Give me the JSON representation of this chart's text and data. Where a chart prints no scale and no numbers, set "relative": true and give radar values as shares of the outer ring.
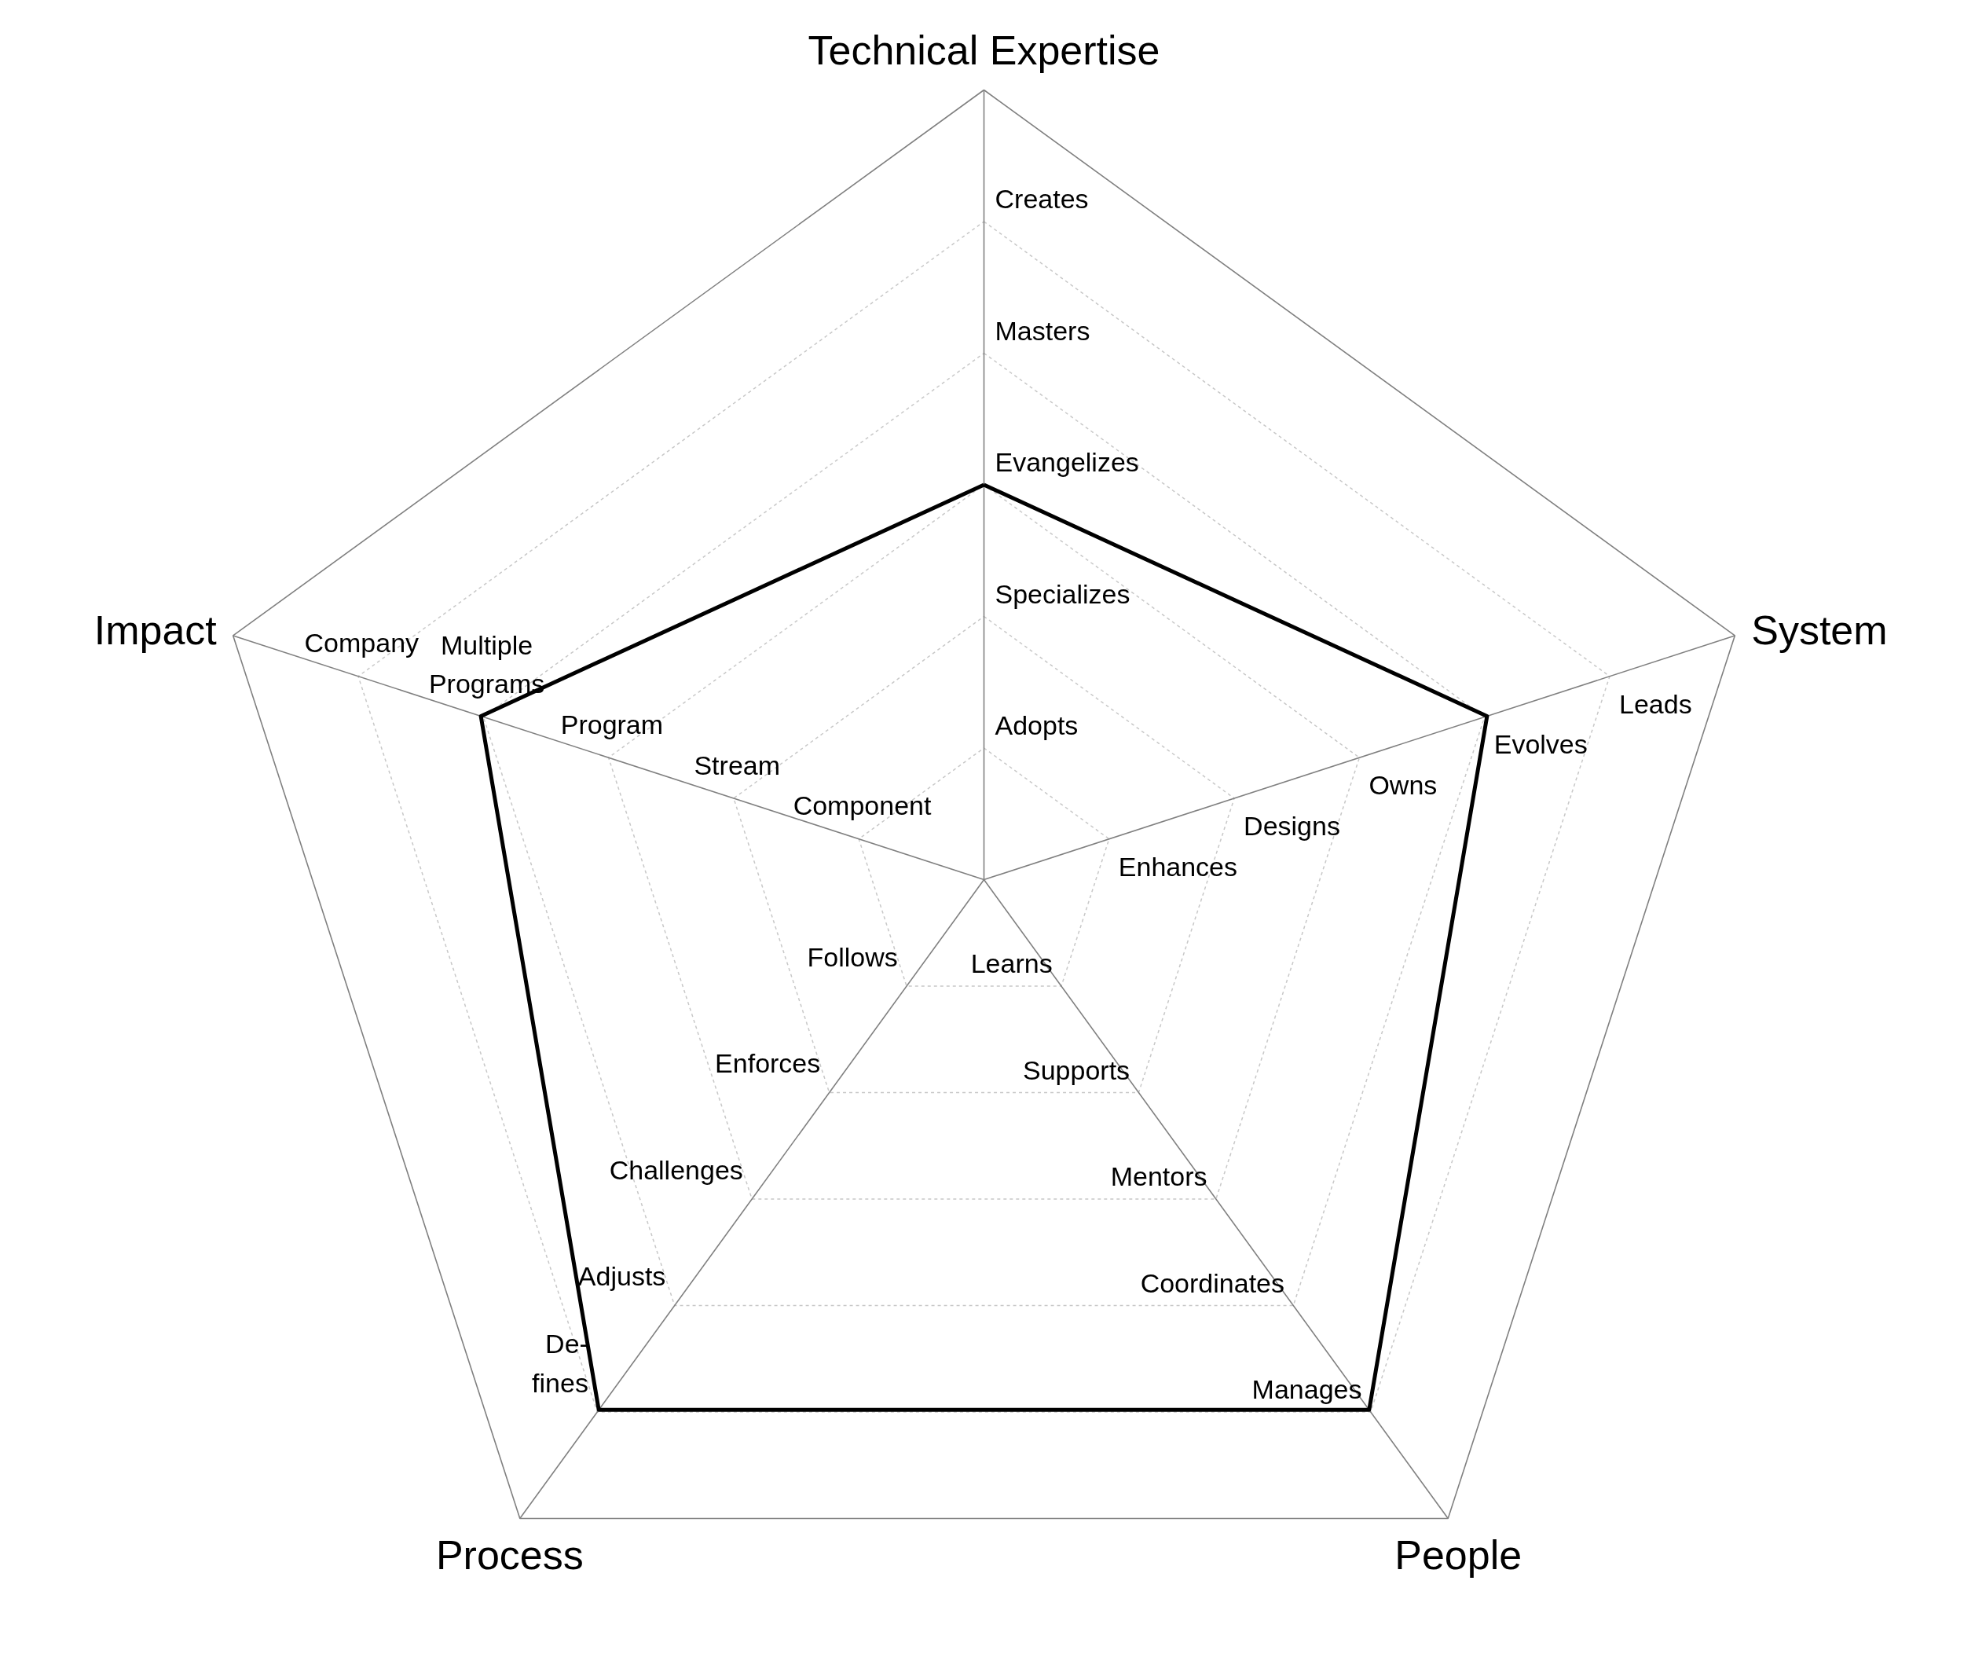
{
  "chart_data": {
    "type": "radar",
    "relative": true,
    "categories": [
      "Technical Expertise",
      "System",
      "People",
      "Process",
      "Impact"
    ],
    "series": [
      {
        "color": "#000000",
        "values": [
          0.5,
          0.67,
          0.83,
          0.83,
          0.67
        ]
      }
    ],
    "grid": true,
    "line_style": "solid",
    "annotations": [
      {
        "text": "Adopts",
        "x": "Technical Expertise"
      },
      {
        "text": "Specializes",
        "x": "Technical Expertise"
      },
      {
        "text": "Evangelizes",
        "x": "Technical Expertise"
      },
      {
        "text": "Masters",
        "x": "Technical Expertise"
      },
      {
        "text": "Creates",
        "x": "Technical Expertise"
      },
      {
        "text": "Enhances",
        "x": "System"
      },
      {
        "text": "Designs",
        "x": "System"
      },
      {
        "text": "Owns",
        "x": "System"
      },
      {
        "text": "Evolves",
        "x": "System"
      },
      {
        "text": "Leads",
        "x": "System"
      },
      {
        "text": "Learns",
        "x": "People"
      },
      {
        "text": "Supports",
        "x": "People"
      },
      {
        "text": "Mentors",
        "x": "People"
      },
      {
        "text": "Coordinates",
        "x": "People"
      },
      {
        "text": "Manages",
        "x": "People"
      },
      {
        "text": "Follows",
        "x": "Process"
      },
      {
        "text": "Enforces",
        "x": "Process"
      },
      {
        "text": "Challenges",
        "x": "Process"
      },
      {
        "text": "Adjusts",
        "x": "Process"
      },
      {
        "text": "De-\nfines",
        "x": "Process"
      },
      {
        "text": "Component",
        "x": "Impact"
      },
      {
        "text": "Stream",
        "x": "Impact"
      },
      {
        "text": "Program",
        "x": "Impact"
      },
      {
        "text": "Multiple\nPrograms",
        "x": "Impact"
      },
      {
        "text": "Company",
        "x": "Impact"
      }
    ]
  }
}
